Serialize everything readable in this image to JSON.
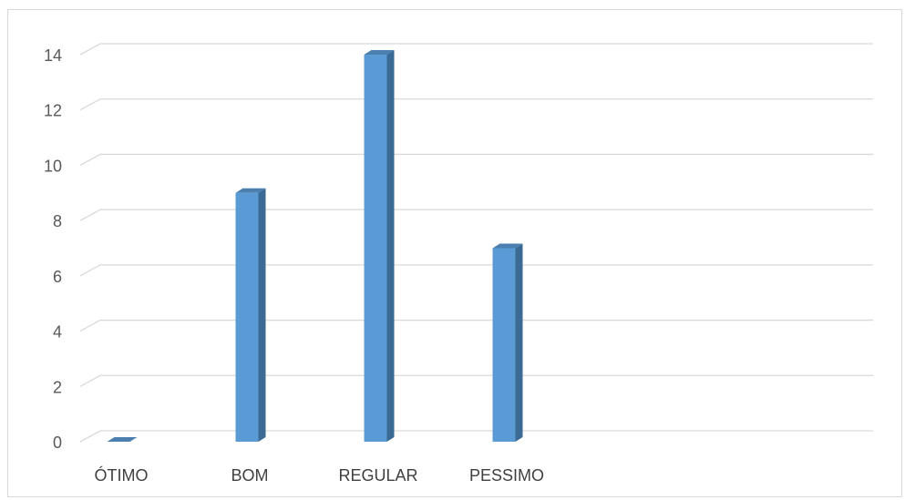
{
  "chart_data": {
    "type": "bar",
    "style": "3d-column",
    "categories": [
      "ÓTIMO",
      "BOM",
      "REGULAR",
      "PESSIMO"
    ],
    "values": [
      0,
      9,
      14,
      7
    ],
    "ylim": [
      0,
      14
    ],
    "yticks": [
      0,
      2,
      4,
      6,
      8,
      10,
      12,
      14
    ],
    "grid": true,
    "legend": "none",
    "colors": {
      "bar_front": "#5b9bd5",
      "bar_side": "#3b6a94",
      "bar_top": "#4a7fb0",
      "grid": "#d9d9d9",
      "axis_text": "#595959"
    }
  }
}
